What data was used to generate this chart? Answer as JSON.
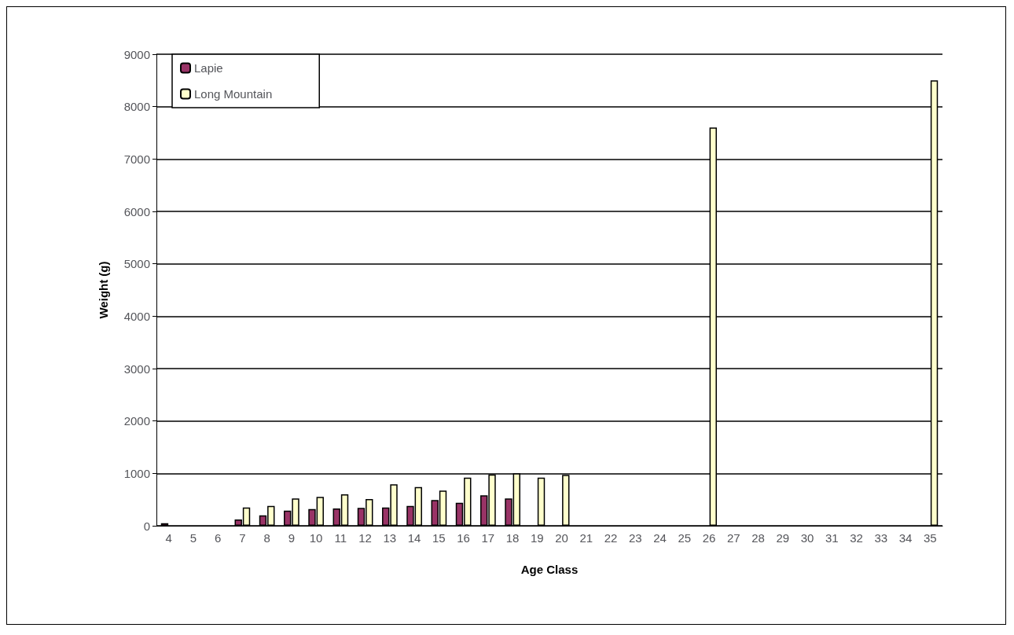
{
  "chart_data": {
    "type": "bar",
    "xlabel": "Age Class",
    "ylabel": "Weight (g)",
    "categories": [
      "4",
      "5",
      "6",
      "7",
      "8",
      "9",
      "10",
      "11",
      "12",
      "13",
      "14",
      "15",
      "16",
      "17",
      "18",
      "19",
      "20",
      "21",
      "22",
      "23",
      "24",
      "25",
      "26",
      "27",
      "28",
      "29",
      "30",
      "31",
      "32",
      "33",
      "34",
      "35"
    ],
    "series": [
      {
        "name": "Lapie",
        "color": "#993366",
        "values": [
          50,
          null,
          null,
          120,
          200,
          290,
          320,
          330,
          340,
          350,
          380,
          490,
          440,
          580,
          520,
          null,
          null,
          null,
          null,
          null,
          null,
          null,
          null,
          null,
          null,
          null,
          null,
          null,
          null,
          null,
          null,
          null
        ]
      },
      {
        "name": "Long Mountain",
        "color": "#ffffcc",
        "values": [
          null,
          null,
          null,
          350,
          380,
          520,
          550,
          600,
          510,
          790,
          740,
          670,
          920,
          980,
          1000,
          920,
          970,
          null,
          null,
          null,
          null,
          null,
          7600,
          null,
          null,
          null,
          null,
          null,
          null,
          null,
          null,
          8500
        ]
      }
    ],
    "ylim": [
      0,
      9000
    ],
    "yticks": [
      0,
      1000,
      2000,
      3000,
      4000,
      5000,
      6000,
      7000,
      8000,
      9000
    ],
    "grid": "y",
    "legend": "top left"
  }
}
